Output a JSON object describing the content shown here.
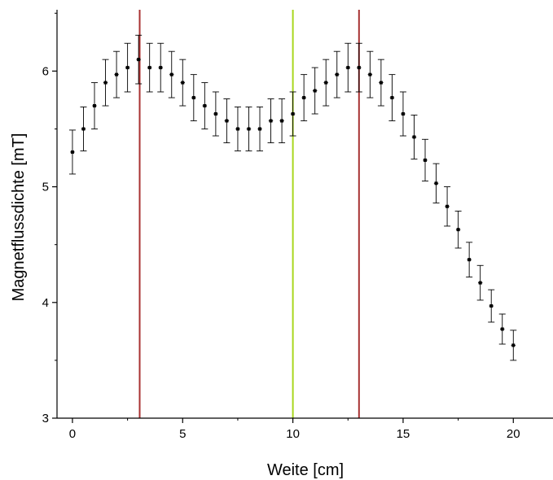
{
  "chart_data": {
    "type": "scatter",
    "title": "",
    "xlabel": "Weite [cm]",
    "ylabel": "Magnetflussdichte [mT]",
    "xlim": [
      -0.7,
      21.8
    ],
    "ylim": [
      3.0,
      6.53
    ],
    "xticks": [
      0,
      5,
      10,
      15,
      20
    ],
    "yticks": [
      3,
      4,
      5,
      6
    ],
    "grid": false,
    "legend": "none",
    "series": [
      {
        "x": [
          0,
          0.5,
          1,
          1.5,
          2,
          2.5,
          3,
          3.5,
          4,
          4.5,
          5,
          5.5,
          6,
          6.5,
          7,
          7.5,
          8,
          8.5,
          9,
          9.5,
          10,
          10.5,
          11,
          11.5,
          12,
          12.5,
          13,
          13.5,
          14,
          14.5,
          15,
          15.5,
          16,
          16.5,
          17,
          17.5,
          18,
          18.5,
          19,
          19.5,
          20
        ],
        "y": [
          5.3,
          5.5,
          5.7,
          5.9,
          5.97,
          6.03,
          6.1,
          6.03,
          6.03,
          5.97,
          5.9,
          5.77,
          5.7,
          5.63,
          5.57,
          5.5,
          5.5,
          5.5,
          5.57,
          5.57,
          5.63,
          5.77,
          5.83,
          5.9,
          5.97,
          6.03,
          6.03,
          5.97,
          5.9,
          5.77,
          5.63,
          5.43,
          5.23,
          5.03,
          4.83,
          4.63,
          4.37,
          4.17,
          3.97,
          3.77,
          3.63
        ],
        "y_err": [
          0.19,
          0.19,
          0.2,
          0.2,
          0.2,
          0.21,
          0.21,
          0.21,
          0.21,
          0.2,
          0.2,
          0.2,
          0.2,
          0.19,
          0.19,
          0.19,
          0.19,
          0.19,
          0.19,
          0.19,
          0.19,
          0.2,
          0.2,
          0.2,
          0.2,
          0.21,
          0.21,
          0.2,
          0.2,
          0.2,
          0.19,
          0.19,
          0.18,
          0.17,
          0.17,
          0.16,
          0.15,
          0.15,
          0.14,
          0.13,
          0.13
        ],
        "x_err": 0.1,
        "color": "#000000"
      }
    ],
    "vertical_lines": [
      {
        "x": 3.05,
        "color": "#a83232"
      },
      {
        "x": 10.0,
        "color": "#a8d61e"
      },
      {
        "x": 13.0,
        "color": "#a83232"
      }
    ]
  }
}
